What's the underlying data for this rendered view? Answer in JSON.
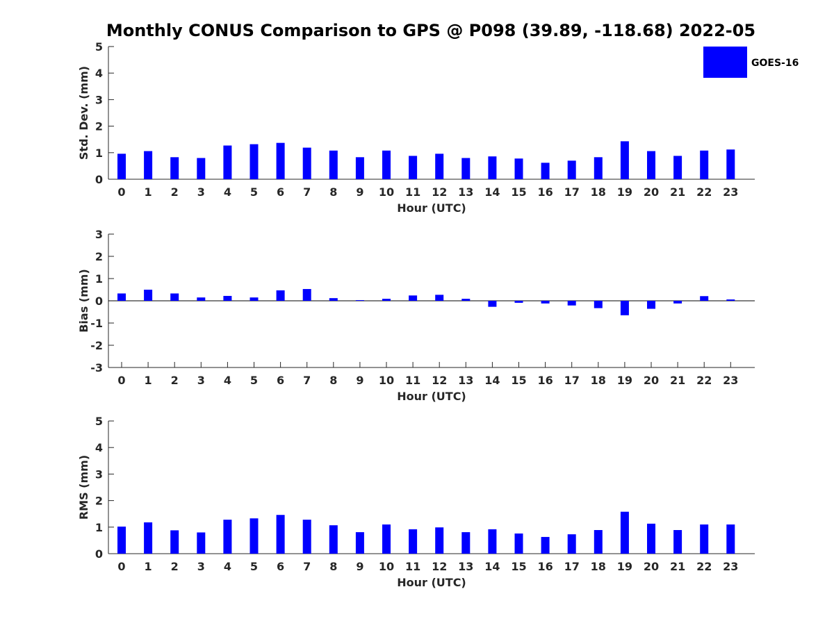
{
  "title": "Monthly CONUS Comparison to GPS @ P098 (39.89, -118.68) 2022-05",
  "legend": {
    "label": "GOES-16",
    "color": "#0000ff",
    "placement": "top-right"
  },
  "chart_data": [
    {
      "type": "bar",
      "xlabel": "Hour (UTC)",
      "ylabel": "Std. Dev. (mm)",
      "ylim": [
        0,
        5
      ],
      "yticks": [
        0,
        1,
        2,
        3,
        4,
        5
      ],
      "categories": [
        "0",
        "1",
        "2",
        "3",
        "4",
        "5",
        "6",
        "7",
        "8",
        "9",
        "10",
        "11",
        "12",
        "13",
        "14",
        "15",
        "16",
        "17",
        "18",
        "19",
        "20",
        "21",
        "22",
        "23"
      ],
      "series": [
        {
          "name": "GOES-16",
          "values": [
            0.96,
            1.06,
            0.83,
            0.8,
            1.27,
            1.32,
            1.37,
            1.19,
            1.08,
            0.83,
            1.08,
            0.88,
            0.96,
            0.8,
            0.86,
            0.78,
            0.62,
            0.7,
            0.83,
            1.43,
            1.06,
            0.88,
            1.08,
            1.12
          ]
        }
      ]
    },
    {
      "type": "bar",
      "xlabel": "Hour (UTC)",
      "ylabel": "Bias (mm)",
      "ylim": [
        -3,
        3
      ],
      "yticks": [
        -3,
        -2,
        -1,
        0,
        1,
        2,
        3
      ],
      "zero_line": true,
      "categories": [
        "0",
        "1",
        "2",
        "3",
        "4",
        "5",
        "6",
        "7",
        "8",
        "9",
        "10",
        "11",
        "12",
        "13",
        "14",
        "15",
        "16",
        "17",
        "18",
        "19",
        "20",
        "21",
        "22",
        "23"
      ],
      "series": [
        {
          "name": "GOES-16",
          "values": [
            0.33,
            0.5,
            0.33,
            0.15,
            0.22,
            0.15,
            0.47,
            0.53,
            0.12,
            0.03,
            0.09,
            0.24,
            0.27,
            0.09,
            -0.27,
            -0.09,
            -0.12,
            -0.21,
            -0.33,
            -0.65,
            -0.36,
            -0.12,
            0.21,
            0.06
          ]
        }
      ]
    },
    {
      "type": "bar",
      "xlabel": "Hour (UTC)",
      "ylabel": "RMS (mm)",
      "ylim": [
        0,
        5
      ],
      "yticks": [
        0,
        1,
        2,
        3,
        4,
        5
      ],
      "categories": [
        "0",
        "1",
        "2",
        "3",
        "4",
        "5",
        "6",
        "7",
        "8",
        "9",
        "10",
        "11",
        "12",
        "13",
        "14",
        "15",
        "16",
        "17",
        "18",
        "19",
        "20",
        "21",
        "22",
        "23"
      ],
      "series": [
        {
          "name": "GOES-16",
          "values": [
            1.02,
            1.18,
            0.88,
            0.8,
            1.28,
            1.33,
            1.46,
            1.28,
            1.07,
            0.81,
            1.1,
            0.92,
            0.99,
            0.81,
            0.92,
            0.76,
            0.63,
            0.73,
            0.89,
            1.58,
            1.13,
            0.89,
            1.1,
            1.1
          ]
        }
      ]
    }
  ]
}
